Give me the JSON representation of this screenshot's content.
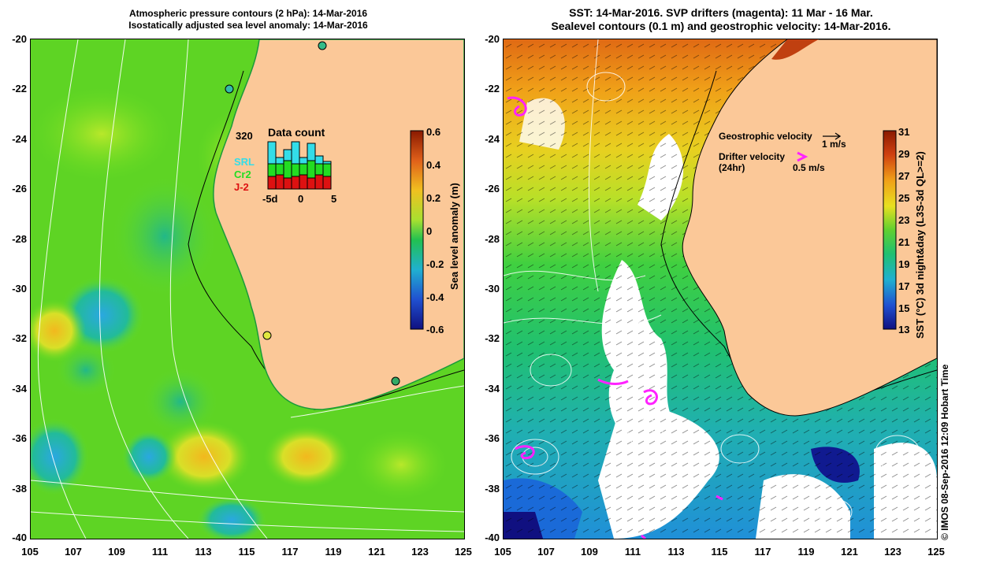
{
  "left_panel": {
    "title_line1": "Atmospheric pressure contours (2 hPa): 14-Mar-2016",
    "title_line2": "Isostatically adjusted sea level anomaly: 14-Mar-2016",
    "colorbar_label": "Sea level anomaly (m)",
    "colorbar_ticks": [
      "0.6",
      "0.4",
      "0.2",
      "0",
      "-0.2",
      "-0.4",
      "-0.6"
    ],
    "inset": {
      "count_label": "320",
      "title": "Data count",
      "series": [
        "SRL",
        "Cr2",
        "J-2"
      ],
      "series_colors": [
        "#33dde8",
        "#22dd22",
        "#dd1111"
      ],
      "x_ticks": [
        "-5d",
        "0",
        "5"
      ]
    }
  },
  "right_panel": {
    "title_line1": "SST: 14-Mar-2016. SVP drifters (magenta): 11 Mar - 16 Mar.",
    "title_line2": "Sealevel contours (0.1 m) and geostrophic velocity: 14-Mar-2016.",
    "colorbar_label": "SST (°C) 3d night&day (L3S-3d QL>=2)",
    "colorbar_ticks": [
      "31",
      "29",
      "27",
      "25",
      "23",
      "21",
      "19",
      "17",
      "15",
      "13"
    ],
    "legend_geo_label": "Geostrophic velocity",
    "legend_geo_value": "1 m/s",
    "legend_drifter_label": "Drifter velocity",
    "legend_drifter_sub": "(24hr)",
    "legend_drifter_value": "0.5 m/s"
  },
  "axes": {
    "y_ticks": [
      "-20",
      "-22",
      "-24",
      "-26",
      "-28",
      "-30",
      "-32",
      "-34",
      "-36",
      "-38",
      "-40"
    ],
    "x_ticks": [
      "105",
      "107",
      "109",
      "111",
      "113",
      "115",
      "117",
      "119",
      "121",
      "123",
      "125"
    ]
  },
  "credit": "© IMOS 08-Sep-2016 12:09 Hobart Time",
  "colors": {
    "land": "#fbc898",
    "sla_base": "#66dd22",
    "sst_white": "#ffffff",
    "drifter": "#ff22ff"
  }
}
